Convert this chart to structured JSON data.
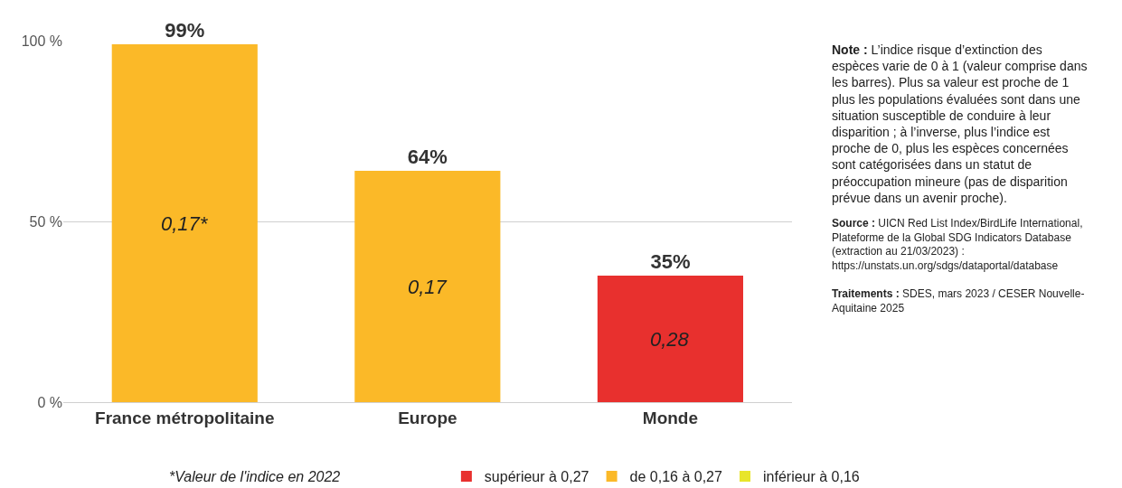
{
  "chart_data": {
    "type": "bar",
    "stacked": true,
    "categories": [
      "France métropolitaine",
      "Europe",
      "Monde"
    ],
    "series": [
      {
        "name": "supérieur à 0,27",
        "color": "#e8302e",
        "values": [
          null,
          null,
          35
        ],
        "value_labels": [
          null,
          null,
          "35%"
        ]
      },
      {
        "name": "de 0,16 à 0,27",
        "color": "#fbb928",
        "values": [
          99,
          64,
          null
        ],
        "value_labels": [
          "99%",
          "64%",
          null
        ]
      },
      {
        "name": "inférieur à 0,16",
        "color": "#e8e52a",
        "values": [
          null,
          null,
          null
        ]
      }
    ],
    "ylim": [
      0,
      100
    ],
    "yticks": [
      {
        "value": 0,
        "label": "0 %"
      },
      {
        "value": 50,
        "label": "50 %"
      },
      {
        "value": 100,
        "label": "100 %"
      }
    ],
    "grid": "y",
    "legend": "bottom",
    "annotations": [
      "0,17*",
      "0,17",
      "0,28",
      "*Valeur de l'indice en 2022",
      "Note : L’indice risque d’extinction des espèces varie de 0 à 1 (valeur comprise dans les barres). Plus sa valeur est proche de 1 plus les populations évaluées sont dans une situation susceptible de conduire à leur disparition ; à l’inverse, plus l’indice est proche de 0, plus les espèces concernées sont catégorisées dans un statut de préoccupation mineure (pas de disparition prévue dans un avenir proche).",
      "Source : UICN Red List Index/BirdLife International, Plateforme de la Global SDG Indicators Database (extraction au 21/03/2023) : https://unstats.un.org/sdgs/dataportal/database",
      "Traitements : SDES, mars 2023 / CESER Nouvelle-Aquitaine 2025"
    ]
  }
}
